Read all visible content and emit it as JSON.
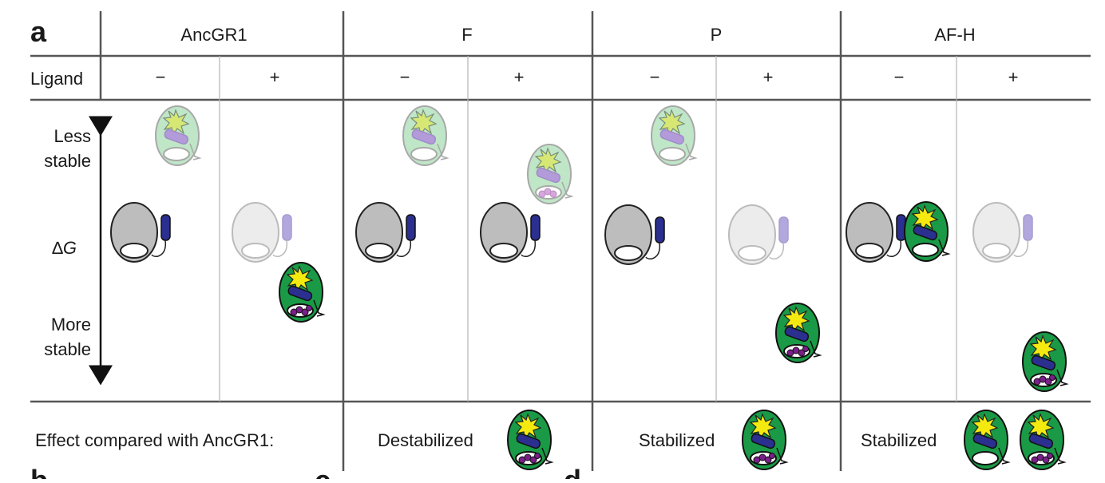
{
  "figure": {
    "panel_label": "a",
    "row_label_ligand": "Ligand",
    "constructs": [
      {
        "name": "AncGR1",
        "minus": "−",
        "plus": "+"
      },
      {
        "name": "F",
        "minus": "−",
        "plus": "+"
      },
      {
        "name": "P",
        "minus": "−",
        "plus": "+"
      },
      {
        "name": "AF-H",
        "minus": "−",
        "plus": "+"
      }
    ],
    "axis": {
      "top_line1": "Less",
      "top_line2": "stable",
      "middle_prefix": "∆",
      "middle_italic": "G",
      "bottom_line1": "More",
      "bottom_line2": "stable"
    },
    "effect_label": "Effect compared with AncGR1:",
    "effects": [
      "Destabilized",
      "Stabilized",
      "Stabilized"
    ],
    "next_panel_fragments": [
      "b",
      "c",
      "d"
    ],
    "colors": {
      "gray_fill": "#bdbdbd",
      "ghost_fill": "#ececec",
      "green_fill": "#1a9a46",
      "green_ghost": "#bfe6c7",
      "blue_helix": "#2b2f8f",
      "purple_ligand": "#7a1f8a",
      "burst_yellow": "#f4ea10",
      "line": "#555555"
    }
  }
}
